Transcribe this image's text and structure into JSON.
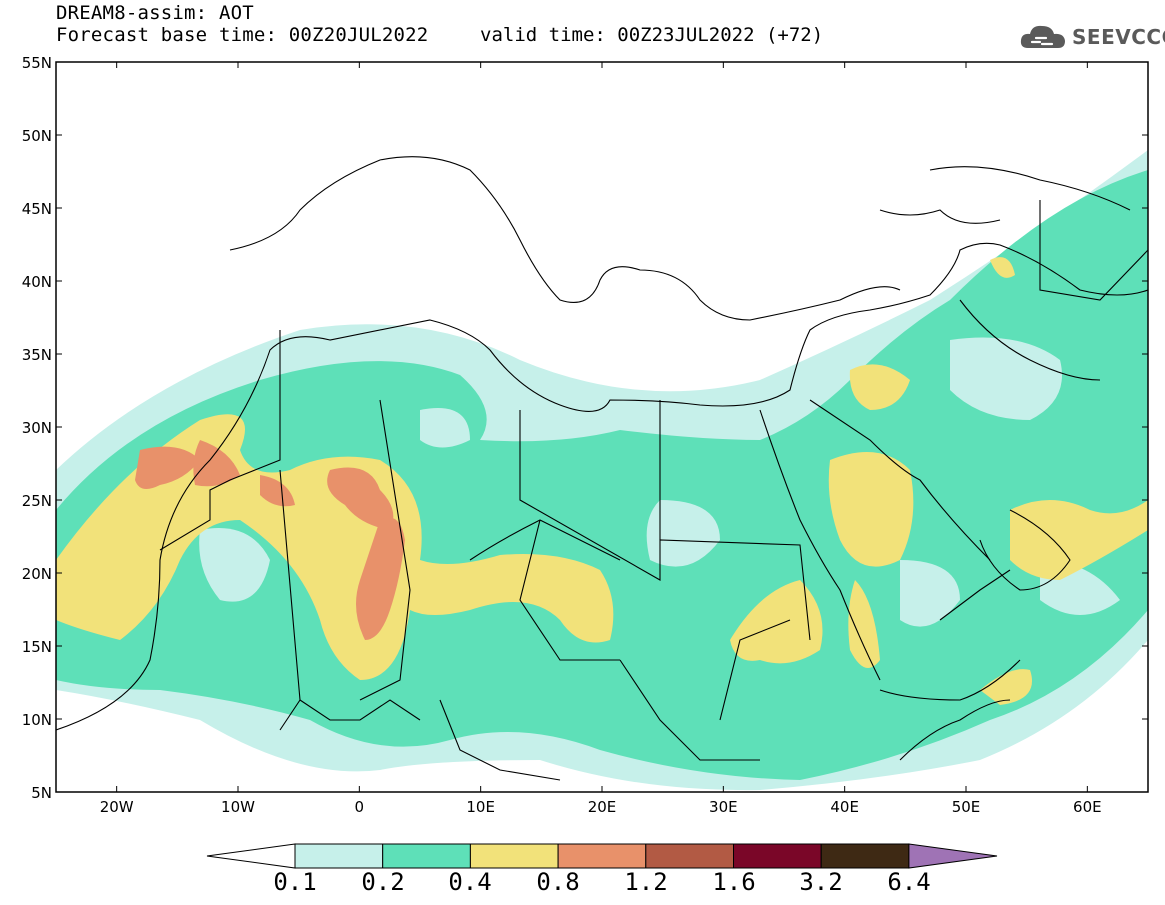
{
  "header": {
    "title": "DREAM8-assim: AOT",
    "base_time": "Forecast base time: 00Z20JUL2022",
    "valid_time": "valid time: 00Z23JUL2022 (+72)"
  },
  "logo": {
    "text": "SEEVCCC",
    "icon": "cloud-icon"
  },
  "map": {
    "lon_range": [
      -25,
      65
    ],
    "lat_range": [
      5,
      55
    ],
    "lat_ticks": [
      "55N",
      "50N",
      "45N",
      "40N",
      "35N",
      "30N",
      "25N",
      "20N",
      "15N",
      "10N",
      "5N"
    ],
    "lon_ticks": [
      "20W",
      "10W",
      "0",
      "10E",
      "20E",
      "30E",
      "40E",
      "50E",
      "60E"
    ]
  },
  "colorbar": {
    "labels": [
      "0.1",
      "0.2",
      "0.4",
      "0.8",
      "1.2",
      "1.6",
      "3.2",
      "6.4"
    ],
    "colors": [
      "#c6f0ea",
      "#5ee0b8",
      "#f2e27a",
      "#e8916a",
      "#b25a44",
      "#7a0628",
      "#3e2914",
      "#9f73b5"
    ]
  },
  "legend_colors": {
    "ocean": "#ffffff",
    "border": "#000000"
  }
}
